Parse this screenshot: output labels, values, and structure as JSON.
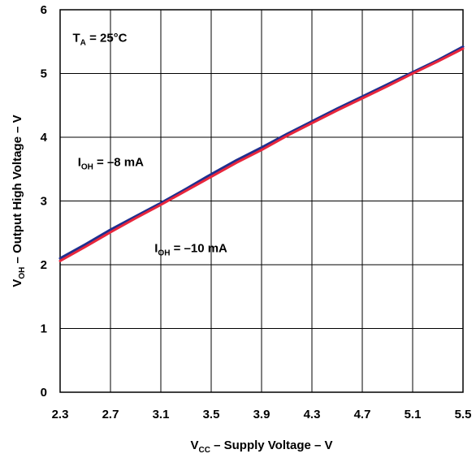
{
  "chart_data": {
    "type": "line",
    "xlabel": {
      "main": "V",
      "sub": "CC",
      "rest": " – Supply Voltage – V"
    },
    "ylabel": {
      "main": "V",
      "sub": "OH",
      "rest": " – Output High Voltage – V"
    },
    "xlim": [
      2.3,
      5.5
    ],
    "ylim": [
      0,
      6
    ],
    "xticks": [
      "2.3",
      "2.7",
      "3.1",
      "3.5",
      "3.9",
      "4.3",
      "4.7",
      "5.1",
      "5.5"
    ],
    "yticks": [
      "0",
      "1",
      "2",
      "3",
      "4",
      "5",
      "6"
    ],
    "grid": true,
    "series": [
      {
        "name": "I_OH = –8 mA",
        "color": "#1f2f8f",
        "x": [
          2.3,
          2.5,
          2.7,
          2.9,
          3.1,
          3.3,
          3.5,
          3.7,
          3.9,
          4.1,
          4.3,
          4.5,
          4.7,
          4.9,
          5.1,
          5.3,
          5.5
        ],
        "y": [
          2.1,
          2.32,
          2.55,
          2.76,
          2.97,
          3.19,
          3.42,
          3.64,
          3.84,
          4.05,
          4.25,
          4.45,
          4.64,
          4.83,
          5.02,
          5.21,
          5.42
        ]
      },
      {
        "name": "I_OH = –10 mA",
        "color": "#e8263c",
        "x": [
          2.3,
          2.5,
          2.7,
          2.9,
          3.1,
          3.3,
          3.5,
          3.7,
          3.9,
          4.1,
          4.3,
          4.5,
          4.7,
          4.9,
          5.1,
          5.3,
          5.5
        ],
        "y": [
          2.06,
          2.28,
          2.51,
          2.73,
          2.94,
          3.16,
          3.38,
          3.6,
          3.8,
          4.02,
          4.22,
          4.42,
          4.61,
          4.8,
          5.0,
          5.19,
          5.39
        ]
      }
    ],
    "annotations": [
      {
        "id": "ta",
        "main": "T",
        "sub": "A",
        "rest": " = 25°C",
        "x": 2.4,
        "y": 5.5
      },
      {
        "id": "ioh8",
        "main": "I",
        "sub": "OH",
        "rest": " = –8 mA",
        "x": 2.44,
        "y": 3.55
      },
      {
        "id": "ioh10",
        "main": "I",
        "sub": "OH",
        "rest": " = –10 mA",
        "x": 3.05,
        "y": 2.2
      }
    ]
  }
}
